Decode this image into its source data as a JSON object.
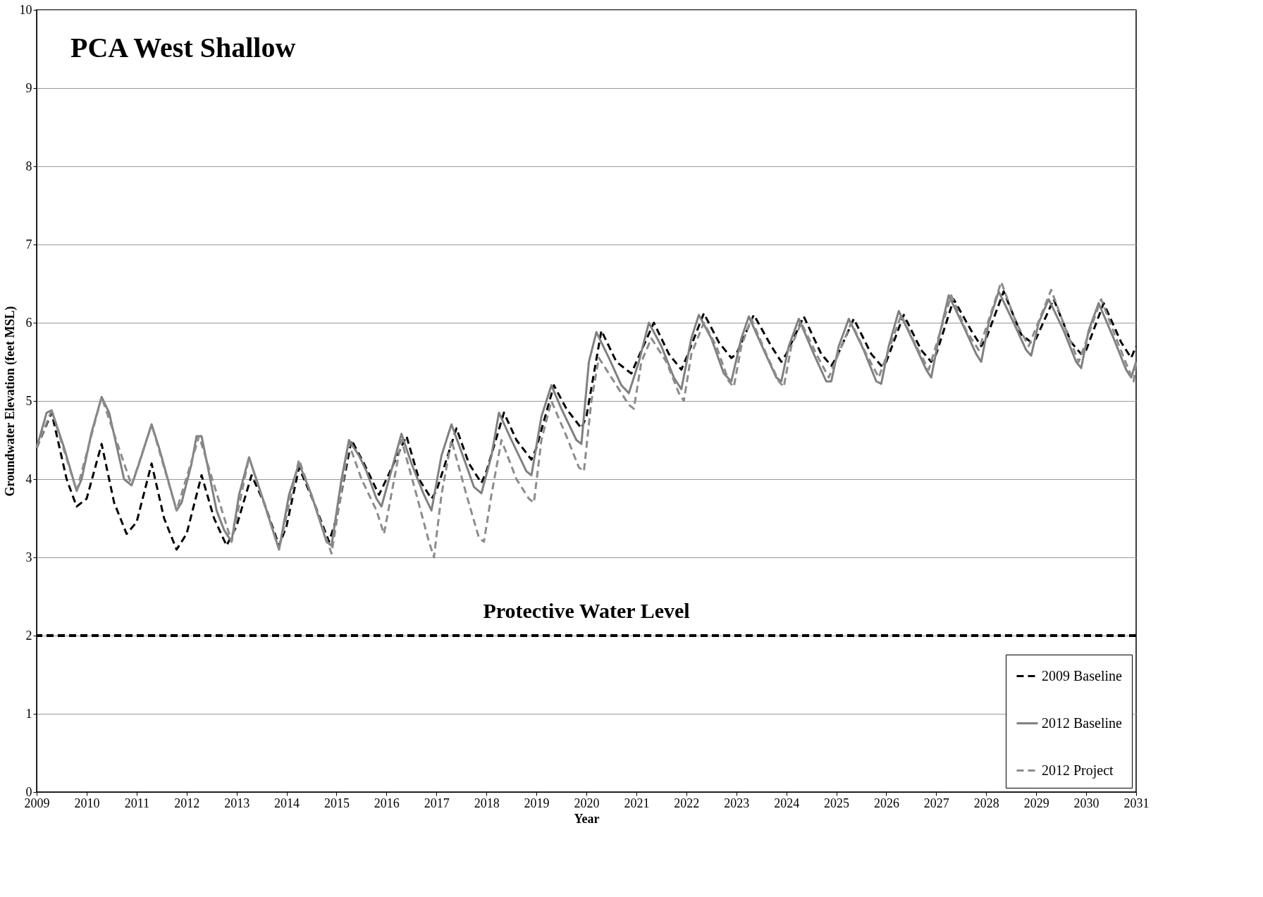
{
  "chart_data": {
    "type": "line",
    "title": "PCA West Shallow",
    "xlabel": "Year",
    "ylabel": "Groundwater Elevation  (feet MSL)",
    "xlim": [
      2009,
      2031
    ],
    "xticks": [
      2009,
      2010,
      2011,
      2012,
      2013,
      2014,
      2015,
      2016,
      2017,
      2018,
      2019,
      2020,
      2021,
      2022,
      2023,
      2024,
      2025,
      2026,
      2027,
      2028,
      2029,
      2030,
      2031
    ],
    "ylim": [
      0,
      10
    ],
    "yticks": [
      0,
      1,
      2,
      3,
      4,
      5,
      6,
      7,
      8,
      9,
      10
    ],
    "grid": "y",
    "legend": "bottom right",
    "marker": "none",
    "ref_lines": [
      {
        "axis": "y",
        "value": 2,
        "label": "Protective Water Level",
        "color": "#000000",
        "line_style": "dashed"
      }
    ],
    "series": [
      {
        "name": "2009 Baseline",
        "color": "#000000",
        "line_style": "dashed",
        "x": [
          2009.0,
          2009.3,
          2009.6,
          2009.8,
          2010.0,
          2010.3,
          2010.55,
          2010.8,
          2011.0,
          2011.3,
          2011.55,
          2011.8,
          2012.0,
          2012.3,
          2012.55,
          2012.8,
          2013.0,
          2013.3,
          2013.55,
          2013.85,
          2014.0,
          2014.25,
          2014.55,
          2014.85,
          2015.0,
          2015.3,
          2015.55,
          2015.85,
          2016.0,
          2016.4,
          2016.65,
          2016.9,
          2017.0,
          2017.4,
          2017.65,
          2017.9,
          2018.0,
          2018.35,
          2018.6,
          2018.9,
          2019.0,
          2019.35,
          2019.6,
          2019.9,
          2020.0,
          2020.3,
          2020.6,
          2020.9,
          2021.0,
          2021.35,
          2021.65,
          2021.9,
          2022.0,
          2022.35,
          2022.65,
          2022.9,
          2023.0,
          2023.35,
          2023.7,
          2023.9,
          2024.0,
          2024.35,
          2024.7,
          2024.9,
          2025.0,
          2025.35,
          2025.7,
          2025.9,
          2026.0,
          2026.35,
          2026.7,
          2026.9,
          2027.0,
          2027.35,
          2027.7,
          2027.9,
          2028.0,
          2028.35,
          2028.7,
          2028.9,
          2029.0,
          2029.35,
          2029.7,
          2029.9,
          2030.0,
          2030.35,
          2030.7,
          2030.9,
          2031.0
        ],
        "values": [
          4.4,
          4.85,
          4.0,
          3.65,
          3.75,
          4.45,
          3.7,
          3.3,
          3.45,
          4.2,
          3.5,
          3.1,
          3.3,
          4.05,
          3.5,
          3.15,
          3.4,
          4.05,
          3.7,
          3.15,
          3.4,
          4.15,
          3.7,
          3.2,
          3.5,
          4.5,
          4.2,
          3.8,
          4.0,
          4.55,
          4.0,
          3.75,
          3.85,
          4.65,
          4.2,
          3.95,
          4.1,
          4.85,
          4.5,
          4.25,
          4.4,
          5.2,
          4.9,
          4.65,
          4.8,
          5.9,
          5.5,
          5.35,
          5.5,
          6.0,
          5.6,
          5.4,
          5.55,
          6.12,
          5.75,
          5.55,
          5.6,
          6.1,
          5.7,
          5.5,
          5.6,
          6.08,
          5.6,
          5.45,
          5.55,
          6.05,
          5.6,
          5.45,
          5.5,
          6.1,
          5.65,
          5.5,
          5.6,
          6.3,
          5.9,
          5.7,
          5.8,
          6.4,
          5.85,
          5.75,
          5.8,
          6.3,
          5.75,
          5.6,
          5.65,
          6.25,
          5.75,
          5.55,
          5.7
        ]
      },
      {
        "name": "2012 Baseline",
        "color": "#808080",
        "line_style": "solid",
        "x": [
          2009.0,
          2009.2,
          2009.3,
          2009.55,
          2009.8,
          2009.9,
          2010.1,
          2010.3,
          2010.45,
          2010.75,
          2010.9,
          2011.05,
          2011.3,
          2011.45,
          2011.8,
          2011.9,
          2012.1,
          2012.2,
          2012.3,
          2012.6,
          2012.75,
          2012.9,
          2013.05,
          2013.25,
          2013.5,
          2013.75,
          2013.85,
          2014.05,
          2014.25,
          2014.5,
          2014.8,
          2014.9,
          2015.1,
          2015.25,
          2015.45,
          2015.6,
          2015.8,
          2015.9,
          2016.05,
          2016.3,
          2016.5,
          2016.75,
          2016.9,
          2017.1,
          2017.3,
          2017.5,
          2017.75,
          2017.9,
          2018.1,
          2018.25,
          2018.5,
          2018.8,
          2018.9,
          2019.1,
          2019.3,
          2019.5,
          2019.8,
          2019.9,
          2020.05,
          2020.2,
          2020.45,
          2020.7,
          2020.85,
          2021.05,
          2021.25,
          2021.5,
          2021.75,
          2021.9,
          2022.1,
          2022.25,
          2022.5,
          2022.75,
          2022.9,
          2023.1,
          2023.25,
          2023.55,
          2023.8,
          2023.9,
          2024.05,
          2024.25,
          2024.55,
          2024.8,
          2024.9,
          2025.05,
          2025.25,
          2025.55,
          2025.8,
          2025.9,
          2026.05,
          2026.25,
          2026.55,
          2026.8,
          2026.9,
          2027.05,
          2027.25,
          2027.55,
          2027.8,
          2027.9,
          2028.05,
          2028.25,
          2028.55,
          2028.8,
          2028.9,
          2029.05,
          2029.25,
          2029.55,
          2029.8,
          2029.9,
          2030.05,
          2030.25,
          2030.55,
          2030.8,
          2030.9,
          2031.0
        ],
        "values": [
          4.4,
          4.85,
          4.88,
          4.4,
          3.85,
          4.0,
          4.6,
          5.05,
          4.85,
          4.0,
          3.92,
          4.2,
          4.7,
          4.4,
          3.6,
          3.7,
          4.2,
          4.55,
          4.55,
          3.6,
          3.35,
          3.2,
          3.8,
          4.28,
          3.8,
          3.3,
          3.1,
          3.8,
          4.2,
          3.8,
          3.2,
          3.15,
          4.0,
          4.5,
          4.3,
          4.1,
          3.75,
          3.65,
          4.0,
          4.58,
          4.2,
          3.8,
          3.6,
          4.3,
          4.7,
          4.35,
          3.9,
          3.82,
          4.3,
          4.85,
          4.5,
          4.1,
          4.05,
          4.8,
          5.2,
          4.9,
          4.5,
          4.45,
          5.5,
          5.88,
          5.55,
          5.2,
          5.1,
          5.5,
          6.0,
          5.7,
          5.3,
          5.15,
          5.8,
          6.1,
          5.8,
          5.35,
          5.25,
          5.8,
          6.08,
          5.65,
          5.3,
          5.25,
          5.7,
          6.05,
          5.6,
          5.25,
          5.25,
          5.7,
          6.05,
          5.65,
          5.25,
          5.22,
          5.7,
          6.15,
          5.75,
          5.4,
          5.3,
          5.8,
          6.35,
          5.95,
          5.6,
          5.5,
          6.0,
          6.4,
          6.0,
          5.65,
          5.58,
          6.0,
          6.3,
          5.9,
          5.5,
          5.42,
          5.9,
          6.25,
          5.8,
          5.4,
          5.3,
          5.5
        ]
      },
      {
        "name": "2012 Project",
        "color": "#8c8c8c",
        "line_style": "dashed",
        "x": [
          2009.0,
          2009.3,
          2009.8,
          2010.3,
          2010.9,
          2011.3,
          2011.8,
          2012.25,
          2012.9,
          2013.25,
          2013.85,
          2014.25,
          2014.9,
          2015.25,
          2015.5,
          2015.8,
          2015.95,
          2016.3,
          2016.6,
          2016.85,
          2016.95,
          2017.1,
          2017.3,
          2017.6,
          2017.85,
          2017.95,
          2018.1,
          2018.3,
          2018.6,
          2018.85,
          2018.95,
          2019.1,
          2019.3,
          2019.6,
          2019.85,
          2019.95,
          2020.1,
          2020.25,
          2020.6,
          2020.85,
          2020.95,
          2021.1,
          2021.3,
          2021.6,
          2021.85,
          2021.95,
          2022.1,
          2022.35,
          2022.6,
          2022.85,
          2022.95,
          2023.1,
          2023.3,
          2023.6,
          2023.85,
          2023.95,
          2024.1,
          2024.3,
          2024.6,
          2024.85,
          2025.3,
          2025.6,
          2025.85,
          2026.3,
          2026.6,
          2026.85,
          2027.3,
          2027.6,
          2027.85,
          2028.3,
          2028.6,
          2028.85,
          2029.3,
          2029.6,
          2029.85,
          2030.3,
          2030.6,
          2030.85,
          2030.95,
          2031.0
        ],
        "values": [
          4.4,
          4.88,
          3.85,
          5.05,
          3.92,
          4.7,
          3.6,
          4.55,
          3.2,
          4.28,
          3.1,
          4.25,
          3.05,
          4.45,
          4.0,
          3.6,
          3.3,
          4.5,
          3.8,
          3.2,
          3.0,
          3.8,
          4.5,
          3.8,
          3.25,
          3.2,
          3.8,
          4.5,
          4.0,
          3.75,
          3.7,
          4.5,
          5.0,
          4.55,
          4.15,
          4.1,
          5.0,
          5.55,
          5.2,
          4.95,
          4.9,
          5.5,
          5.8,
          5.5,
          5.1,
          5.0,
          5.6,
          6.0,
          5.7,
          5.25,
          5.18,
          5.7,
          6.05,
          5.6,
          5.25,
          5.18,
          5.7,
          6.0,
          5.6,
          5.3,
          6.0,
          5.6,
          5.3,
          6.1,
          5.7,
          5.4,
          6.35,
          5.9,
          5.65,
          6.52,
          6.0,
          5.7,
          6.42,
          5.9,
          5.5,
          6.3,
          5.8,
          5.4,
          5.25,
          5.5
        ]
      }
    ]
  }
}
